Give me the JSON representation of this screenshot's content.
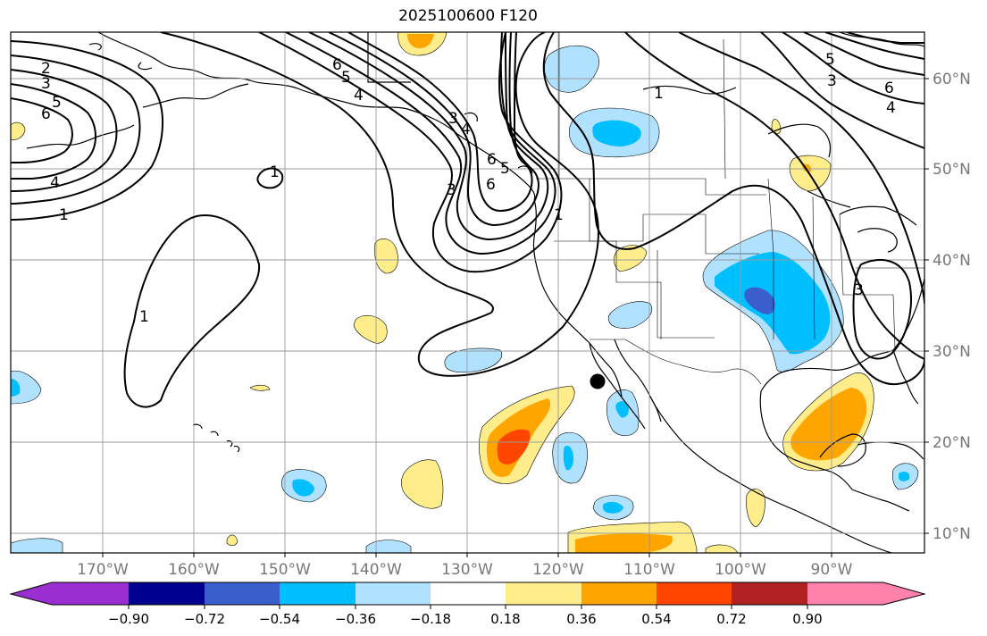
{
  "title": "2025100600 F120",
  "colors": {
    "neg_090": "#9b2ed0",
    "neg_072": "#000090",
    "neg_054": "#3a5fcd",
    "neg_036": "#00bfff",
    "neg_018": "#b0e2ff",
    "zero": "#ffffff",
    "pos_018": "#ffec8b",
    "pos_036": "#ffa500",
    "pos_054": "#ff4500",
    "pos_072": "#b22222",
    "pos_090": "#ff82ab"
  },
  "map": {
    "lon_labels": [
      "170°W",
      "160°W",
      "150°W",
      "140°W",
      "130°W",
      "120°W",
      "110°W",
      "100°W",
      "90°W"
    ],
    "lat_labels": [
      "60°N",
      "50°N",
      "40°N",
      "30°N",
      "20°N",
      "10°N"
    ],
    "contour_labels": [
      "2",
      "3",
      "5",
      "6",
      "4",
      "1",
      "1",
      "1",
      "6",
      "5",
      "4",
      "3",
      "6",
      "1",
      "6",
      "5",
      "4",
      "3",
      "1",
      "3",
      "6",
      "5",
      "4",
      "3"
    ],
    "marker": "storm-center-dot"
  },
  "colorbar": {
    "ticks": [
      "−0.90",
      "−0.72",
      "−0.54",
      "−0.36",
      "−0.18",
      "0.18",
      "0.36",
      "0.54",
      "0.72",
      "0.90"
    ]
  }
}
